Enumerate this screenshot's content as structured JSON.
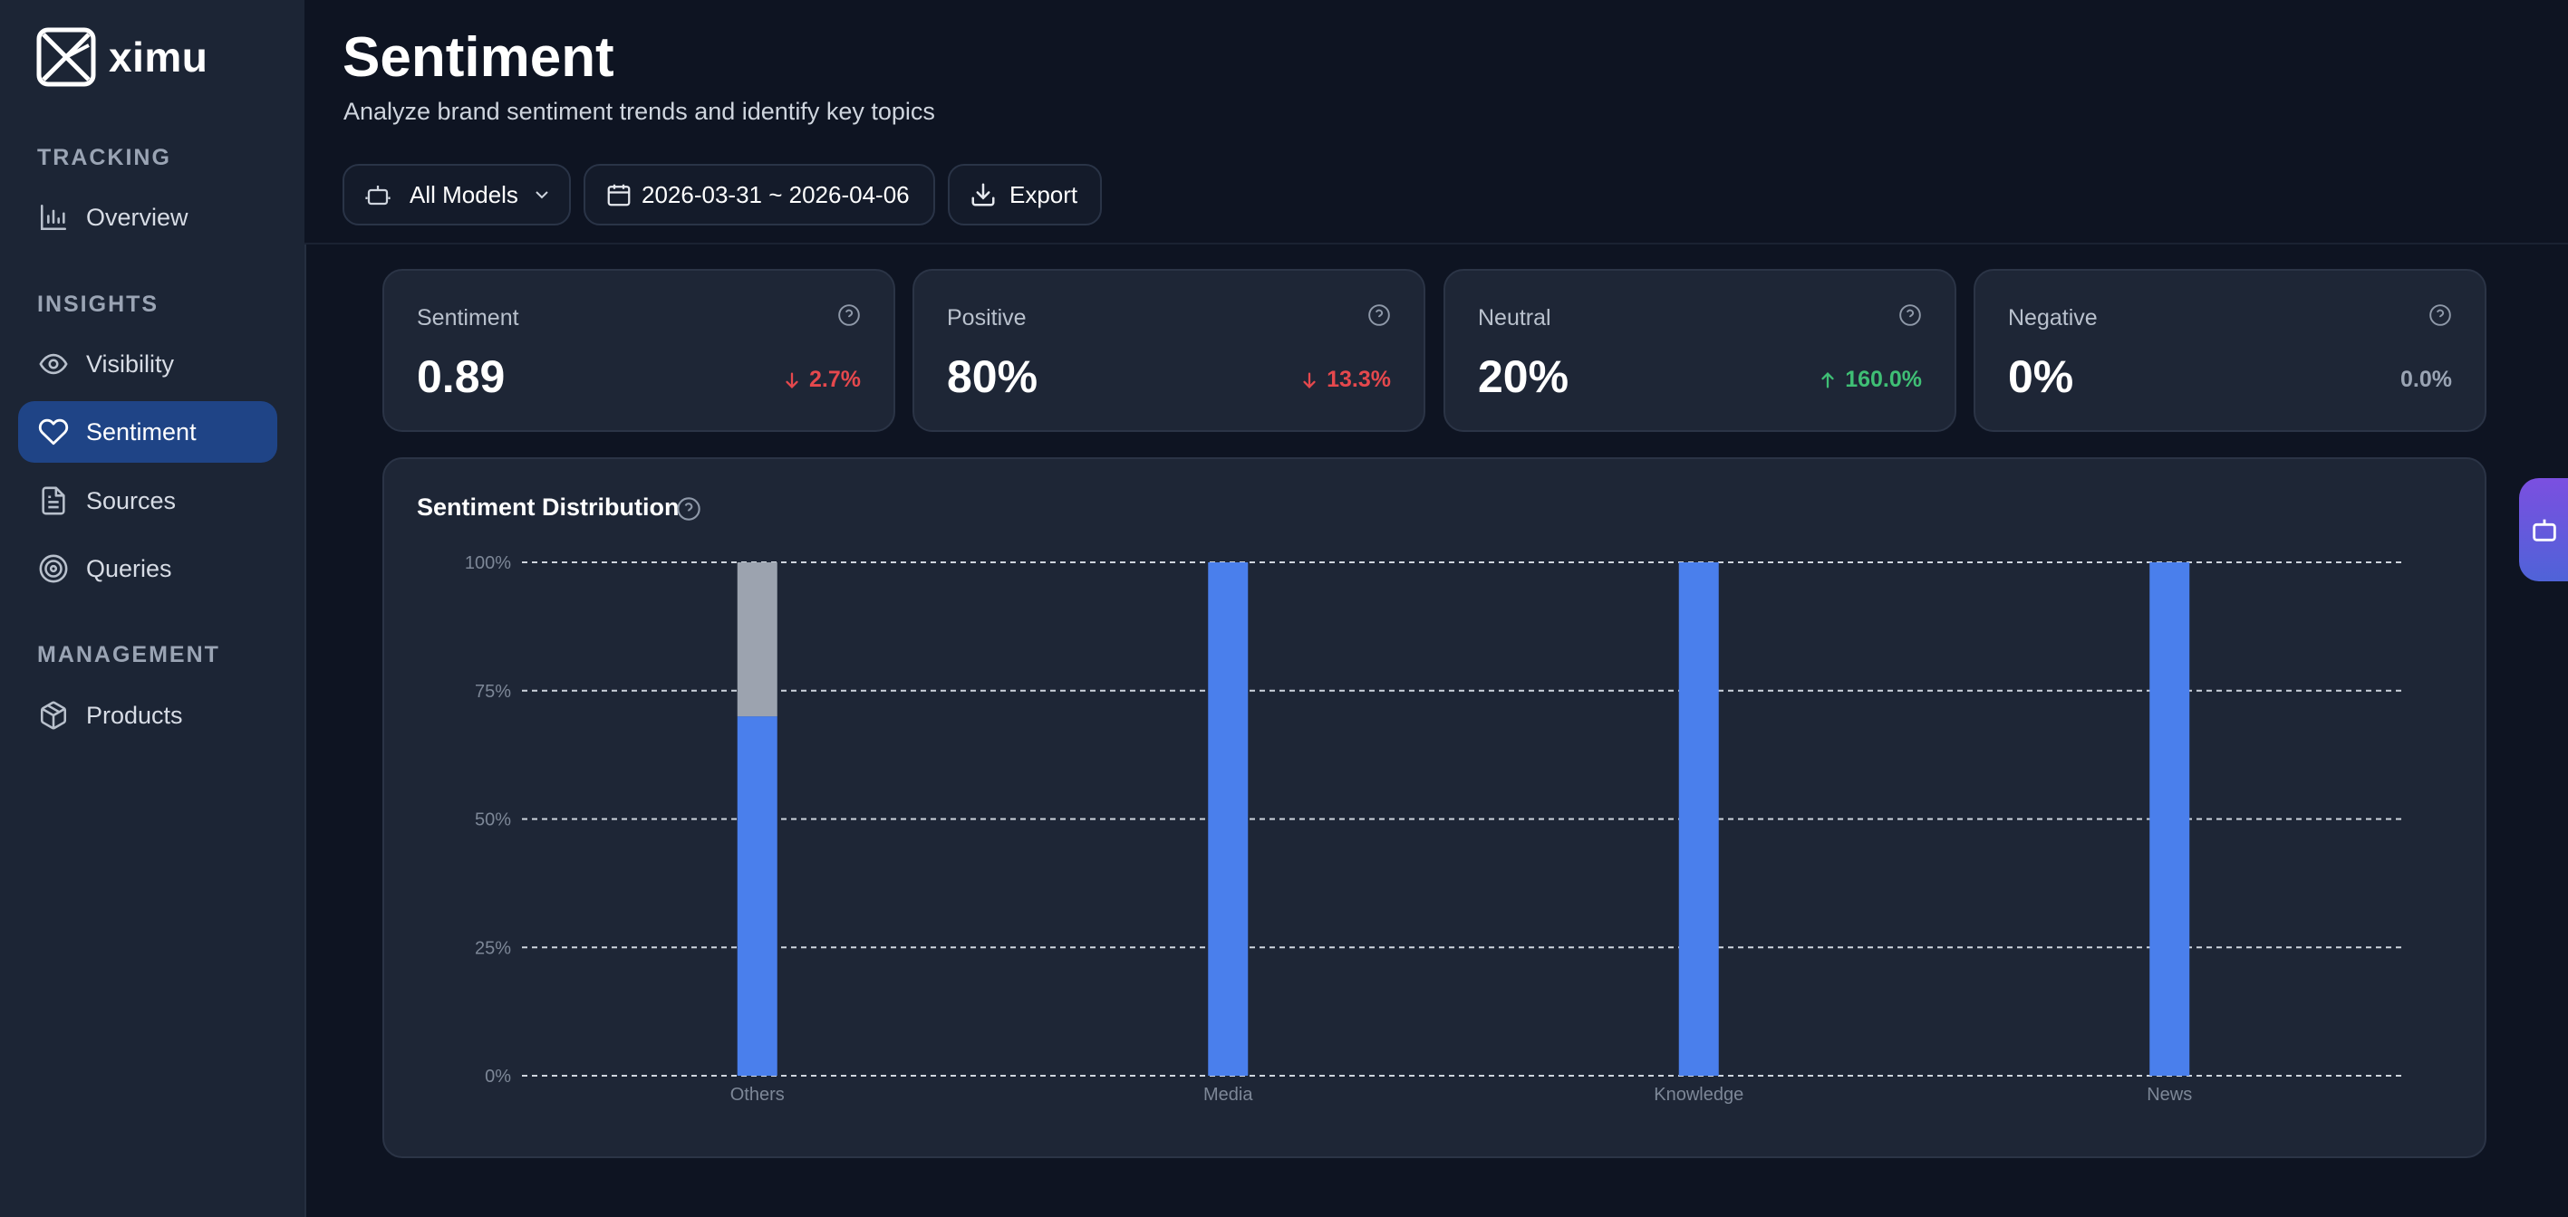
{
  "brand": {
    "name": "ximu"
  },
  "sidebar": {
    "sections": [
      {
        "label": "TRACKING",
        "items": [
          {
            "label": "Overview",
            "icon": "bar-chart-icon"
          }
        ]
      },
      {
        "label": "INSIGHTS",
        "items": [
          {
            "label": "Visibility",
            "icon": "eye-icon"
          },
          {
            "label": "Sentiment",
            "icon": "heart-icon",
            "active": true
          },
          {
            "label": "Sources",
            "icon": "document-icon"
          },
          {
            "label": "Queries",
            "icon": "target-icon"
          }
        ]
      },
      {
        "label": "MANAGEMENT",
        "items": [
          {
            "label": "Products",
            "icon": "package-icon"
          }
        ]
      }
    ]
  },
  "header": {
    "title": "Sentiment",
    "subtitle": "Analyze brand sentiment trends and identify key topics",
    "model_select": "All Models",
    "date_range": "2026-03-31 ~ 2026-04-06",
    "export_label": "Export"
  },
  "stats": [
    {
      "label": "Sentiment",
      "value": "0.89",
      "delta": "2.7%",
      "trend": "down"
    },
    {
      "label": "Positive",
      "value": "80%",
      "delta": "13.3%",
      "trend": "down"
    },
    {
      "label": "Neutral",
      "value": "20%",
      "delta": "160.0%",
      "trend": "up"
    },
    {
      "label": "Negative",
      "value": "0%",
      "delta": "0.0%",
      "trend": "flat"
    }
  ],
  "colors": {
    "positive": "#4a7fec",
    "neutral": "#9ca3af",
    "negative": "#e5484d",
    "accent": "#1f4486"
  },
  "chart_data": {
    "type": "bar",
    "stacked": true,
    "title": "Sentiment Distribution",
    "categories": [
      "Others",
      "Media",
      "Knowledge",
      "News"
    ],
    "series": [
      {
        "name": "Positive",
        "values": [
          70,
          100,
          100,
          100
        ]
      },
      {
        "name": "Neutral",
        "values": [
          30,
          0,
          0,
          0
        ]
      },
      {
        "name": "Negative",
        "values": [
          0,
          0,
          0,
          0
        ]
      }
    ],
    "yticks": [
      "0%",
      "25%",
      "50%",
      "75%",
      "100%"
    ],
    "ylim": [
      0,
      100
    ],
    "grid": true
  }
}
